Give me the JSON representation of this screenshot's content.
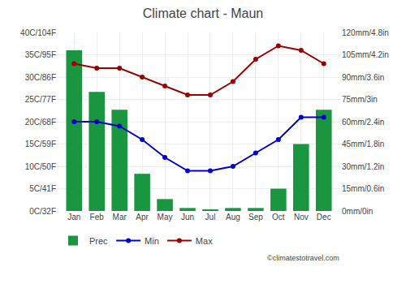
{
  "chart_data": {
    "type": "bar",
    "title": "Climate chart - Maun",
    "categories": [
      "Jan",
      "Feb",
      "Mar",
      "Apr",
      "May",
      "Jun",
      "Jul",
      "Aug",
      "Sep",
      "Oct",
      "Nov",
      "Dec"
    ],
    "series": [
      {
        "name": "Prec",
        "type": "bar",
        "color": "#1a9641",
        "axis": "y2",
        "values": [
          108,
          80,
          68,
          25,
          8,
          2,
          1,
          2,
          2,
          15,
          45,
          68
        ]
      },
      {
        "name": "Min",
        "type": "line",
        "color": "#0000cc",
        "marker": "circle",
        "line_style": "solid",
        "values": [
          20,
          20,
          19,
          16,
          12,
          9,
          9,
          10,
          13,
          16,
          21,
          21
        ]
      },
      {
        "name": "Max",
        "type": "line",
        "color": "#990000",
        "marker": "circle",
        "line_style": "solid",
        "values": [
          33,
          32,
          32,
          30,
          28,
          26,
          26,
          29,
          34,
          37,
          36,
          33
        ]
      }
    ],
    "ylim": [
      0,
      40
    ],
    "yticks": [
      {
        "value": 0,
        "label": "0C/32F"
      },
      {
        "value": 5,
        "label": "5C/41F"
      },
      {
        "value": 10,
        "label": "10C/50F"
      },
      {
        "value": 15,
        "label": "15C/59F"
      },
      {
        "value": 20,
        "label": "20C/68F"
      },
      {
        "value": 25,
        "label": "25C/77F"
      },
      {
        "value": 30,
        "label": "30C/86F"
      },
      {
        "value": 35,
        "label": "35C/95F"
      },
      {
        "value": 40,
        "label": "40C/104F"
      }
    ],
    "y2lim": [
      0,
      120
    ],
    "y2ticks": [
      {
        "value": 0,
        "label": "0mm/0in"
      },
      {
        "value": 15,
        "label": "15mm/0.6in"
      },
      {
        "value": 30,
        "label": "30mm/1.2in"
      },
      {
        "value": 45,
        "label": "45mm/1.8in"
      },
      {
        "value": 60,
        "label": "60mm/2.4in"
      },
      {
        "value": 75,
        "label": "75mm/3in"
      },
      {
        "value": 90,
        "label": "90mm/3.6in"
      },
      {
        "value": 105,
        "label": "105mm/4.2in"
      },
      {
        "value": 120,
        "label": "120mm/4.8in"
      }
    ],
    "grid": true,
    "legend": "lower left",
    "annotations": [
      "©climatestotravel.com"
    ]
  }
}
